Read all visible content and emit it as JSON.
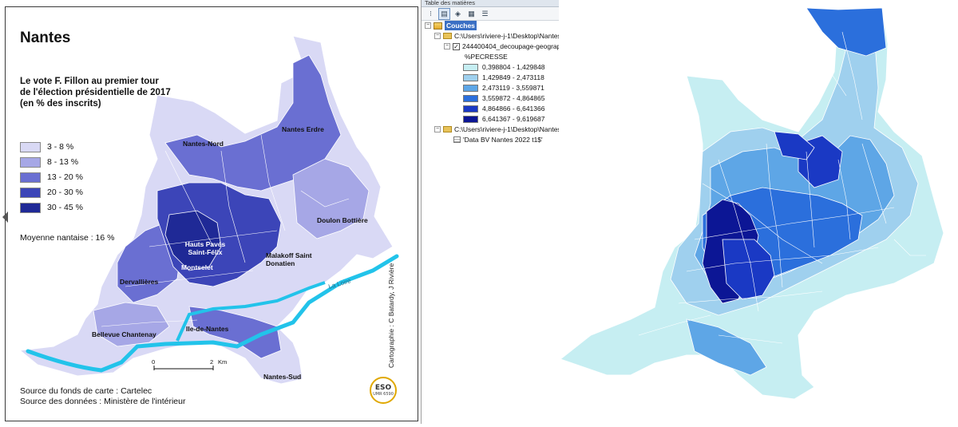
{
  "left_map": {
    "title": "Nantes",
    "subtitle": "Le vote F. Fillon au premier tour de l'élection présidentielle de 2017 (en % des inscrits)",
    "legend": [
      {
        "label": "3 - 8 %",
        "color": "#d9d9f5"
      },
      {
        "label": "8 - 13 %",
        "color": "#a6a7e6"
      },
      {
        "label": "13 - 20 %",
        "color": "#6a6fd2"
      },
      {
        "label": "20 - 30 %",
        "color": "#3c45b8"
      },
      {
        "label": "30 - 45 %",
        "color": "#1f2996"
      }
    ],
    "average_note": "Moyenne nantaise : 16 %",
    "districts": {
      "nantes_nord": "Nantes-Nord",
      "nantes_erdre": "Nantes Erdre",
      "doulon_bottiere": "Doulon Bottière",
      "hauts_paves": "Hauts Pavés Saint-Félix",
      "malakoff": "Malakoff Saint Donatien",
      "dervallieres": "Dervallières",
      "montselet": "Montselet",
      "ile_de_nantes": "Ile-de-Nantes",
      "bellevue": "Bellevue Chantenay",
      "nantes_sud": "Nantes-Sud"
    },
    "river_label": "La Loire",
    "scale": {
      "zero": "0",
      "max": "2",
      "unit": "Km"
    },
    "source_fond": "Source du fonds de carte : Cartelec",
    "source_donnees": "Source des données : Ministère de l'intérieur",
    "credit": "Cartographie : C Batardy, J Rivière",
    "logo": {
      "big": "ESO",
      "small": "UMR 6590"
    }
  },
  "toc": {
    "header": "Table des matières",
    "root_label": "Couches",
    "folder1_path": "C:\\Users\\riviere-j-1\\Desktop\\Nantes",
    "layer_name": "244400404_decoupage-geograph",
    "field_name": "%PECRESSE",
    "classes": [
      {
        "label": "0,398804 - 1,429848",
        "color": "#c6eef2"
      },
      {
        "label": "1,429849 - 2,473118",
        "color": "#9fd0ee"
      },
      {
        "label": "2,473119 - 3,559871",
        "color": "#5ea6e6"
      },
      {
        "label": "3,559872 - 4,864865",
        "color": "#2b6fdc"
      },
      {
        "label": "4,864866 - 6,641366",
        "color": "#1a39c4"
      },
      {
        "label": "6,641367 - 9,619687",
        "color": "#0c1695"
      }
    ],
    "folder2_path": "C:\\Users\\riviere-j-1\\Desktop\\Nantes",
    "table_name": "'Data BV Nantes 2022 t1$'"
  }
}
